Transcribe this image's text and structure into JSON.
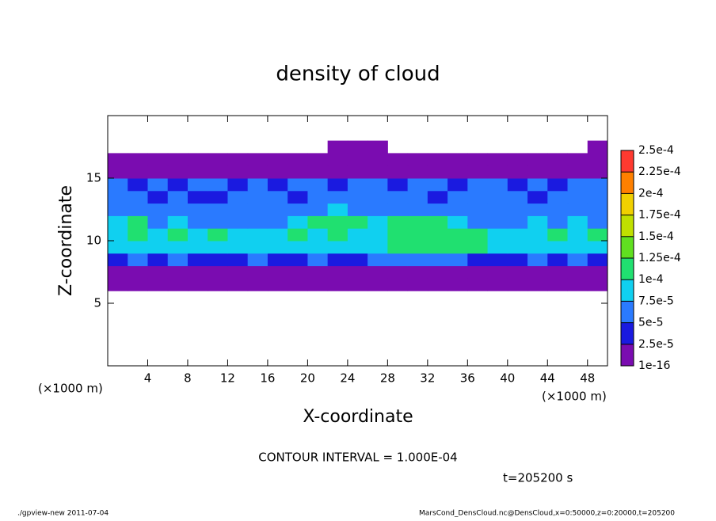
{
  "chart_data": {
    "type": "heatmap",
    "title": "density of cloud",
    "xlabel": "X-coordinate",
    "ylabel": "Z-coordinate",
    "x_unit": "(×1000 m)",
    "y_unit": "(×1000 m)",
    "note": "CONTOUR INTERVAL = 1.000E-04",
    "time_label": "t=205200 s",
    "footer_left": "./gpview-new  2011-07-04",
    "footer_right": "MarsCond_DensCloud.nc@DensCloud,x=0:50000,z=0:20000,t=205200",
    "xlim": [
      0,
      50
    ],
    "ylim": [
      0,
      20
    ],
    "xticks": [
      4,
      8,
      12,
      16,
      20,
      24,
      28,
      32,
      36,
      40,
      44,
      48
    ],
    "yticks": [
      5,
      10,
      15
    ],
    "x": [
      1,
      3,
      5,
      7,
      9,
      11,
      13,
      15,
      17,
      19,
      21,
      23,
      25,
      27,
      29,
      31,
      33,
      35,
      37,
      39,
      41,
      43,
      45,
      47,
      49
    ],
    "y": [
      6.5,
      7.5,
      8.5,
      9.5,
      10.5,
      11.5,
      12.5,
      13.5,
      14.5,
      15.5,
      16.5,
      17.5
    ],
    "z": [
      [
        1e-06,
        1e-06,
        1e-06,
        1e-06,
        1e-06,
        1e-06,
        1e-06,
        1e-06,
        1e-06,
        1e-06,
        1e-06,
        1e-06,
        1e-06,
        1e-06,
        1e-06,
        1e-06,
        1e-06,
        1e-06,
        1e-06,
        1e-06,
        1e-06,
        1e-06,
        1e-06,
        1e-06,
        1e-06
      ],
      [
        2e-05,
        2e-05,
        1e-06,
        2e-05,
        2e-05,
        2e-05,
        2e-05,
        2e-05,
        2e-05,
        2e-05,
        2e-05,
        2e-05,
        2e-05,
        2e-05,
        2e-05,
        2e-05,
        2e-05,
        2e-05,
        2e-05,
        1e-06,
        2e-05,
        2e-05,
        2e-05,
        2e-05,
        2e-05
      ],
      [
        4e-05,
        6e-05,
        4e-05,
        6e-05,
        4e-05,
        4e-05,
        4e-05,
        6e-05,
        4e-05,
        4e-05,
        6e-05,
        4e-05,
        4e-05,
        6e-05,
        6e-05,
        6e-05,
        6e-05,
        6e-05,
        4e-05,
        4e-05,
        4e-05,
        6e-05,
        4e-05,
        6e-05,
        4e-05
      ],
      [
        9e-05,
        9e-05,
        8e-05,
        9e-05,
        8e-05,
        9e-05,
        8e-05,
        8e-05,
        9e-05,
        8e-05,
        8e-05,
        9e-05,
        8e-05,
        8e-05,
        0.000105,
        0.000105,
        0.000105,
        0.000105,
        0.000105,
        9e-05,
        8e-05,
        8e-05,
        9e-05,
        9e-05,
        9e-05
      ],
      [
        9e-05,
        0.000105,
        9e-05,
        0.000105,
        9e-05,
        0.000105,
        8e-05,
        8e-05,
        9e-05,
        0.000102,
        9e-05,
        0.000102,
        9e-05,
        8e-05,
        0.000108,
        0.00011,
        0.00011,
        0.000108,
        0.000105,
        8e-05,
        8e-05,
        9e-05,
        0.000105,
        9e-05,
        0.000105
      ],
      [
        8e-05,
        0.000102,
        7e-05,
        8e-05,
        7e-05,
        7e-05,
        6e-05,
        7e-05,
        7e-05,
        8e-05,
        0.000102,
        0.000105,
        0.000102,
        8e-05,
        0.000105,
        0.000105,
        0.000102,
        8e-05,
        7e-05,
        6e-05,
        7e-05,
        8e-05,
        7e-05,
        8e-05,
        7e-05
      ],
      [
        6e-05,
        7e-05,
        6e-05,
        6e-05,
        5.5e-05,
        6e-05,
        5.5e-05,
        6e-05,
        6e-05,
        7e-05,
        7e-05,
        8e-05,
        7e-05,
        6e-05,
        7e-05,
        6e-05,
        6e-05,
        5.5e-05,
        6e-05,
        5.5e-05,
        6e-05,
        6e-05,
        7e-05,
        6e-05,
        6e-05
      ],
      [
        5.5e-05,
        5e-05,
        4.5e-05,
        5.5e-05,
        4.5e-05,
        4e-05,
        5e-05,
        5.5e-05,
        5e-05,
        4.5e-05,
        5.5e-05,
        6e-05,
        5.5e-05,
        5e-05,
        5.5e-05,
        5e-05,
        4.5e-05,
        5.5e-05,
        5e-05,
        5.5e-05,
        5e-05,
        4.5e-05,
        5.5e-05,
        5e-05,
        5.5e-05
      ],
      [
        5e-05,
        4.5e-05,
        5e-05,
        4.5e-05,
        5e-05,
        5e-05,
        4.5e-05,
        5e-05,
        4.5e-05,
        5e-05,
        5e-05,
        4.5e-05,
        5e-05,
        5e-05,
        4.5e-05,
        5e-05,
        5e-05,
        4.5e-05,
        5e-05,
        5e-05,
        4.5e-05,
        5e-05,
        4.5e-05,
        5e-05,
        5e-05
      ],
      [
        2e-05,
        2e-05,
        2e-05,
        2e-05,
        2e-05,
        2e-05,
        2e-05,
        2e-05,
        2e-05,
        2e-05,
        2e-05,
        2e-05,
        2e-05,
        2e-05,
        2e-05,
        2e-05,
        2e-05,
        2e-05,
        2e-05,
        2e-05,
        2e-05,
        2e-05,
        2e-05,
        2e-05,
        2e-05
      ],
      [
        1e-06,
        1e-06,
        1e-06,
        1e-06,
        1e-06,
        1e-06,
        1e-06,
        1e-06,
        1e-06,
        1e-06,
        1e-06,
        1e-06,
        1e-06,
        1e-06,
        1e-06,
        1e-06,
        1e-06,
        1e-06,
        1e-06,
        1e-06,
        1e-06,
        1e-06,
        1e-06,
        1e-06,
        1e-06
      ],
      [
        0,
        0,
        0,
        0,
        0,
        0,
        0,
        0,
        0,
        0,
        0,
        1e-06,
        1e-06,
        1e-06,
        0,
        0,
        0,
        0,
        0,
        0,
        0,
        0,
        0,
        0,
        1e-06
      ]
    ],
    "levels": [
      {
        "value": 1e-16,
        "label": "1e-16"
      },
      {
        "value": 2.5e-05,
        "label": "2.5e-5"
      },
      {
        "value": 5e-05,
        "label": "5e-5"
      },
      {
        "value": 7.5e-05,
        "label": "7.5e-5"
      },
      {
        "value": 0.0001,
        "label": "1e-4"
      },
      {
        "value": 0.000125,
        "label": "1.25e-4"
      },
      {
        "value": 0.00015,
        "label": "1.5e-4"
      },
      {
        "value": 0.000175,
        "label": "1.75e-4"
      },
      {
        "value": 0.0002,
        "label": "2e-4"
      },
      {
        "value": 0.000225,
        "label": "2.25e-4"
      },
      {
        "value": 0.00025,
        "label": "2.5e-4"
      }
    ],
    "colors": [
      "#7a0cb0",
      "#1a1ae0",
      "#2a7aff",
      "#10d0f0",
      "#20e070",
      "#60e020",
      "#c0e000",
      "#f0d000",
      "#ff8000",
      "#ff3a30"
    ]
  }
}
